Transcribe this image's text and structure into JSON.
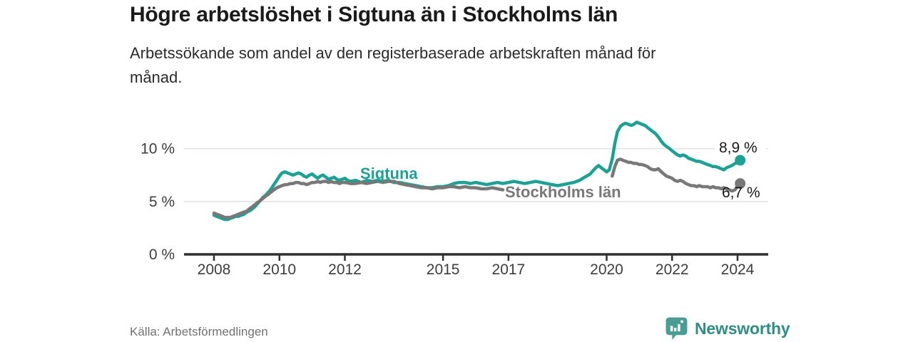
{
  "header": {
    "title": "Högre arbetslöshet i Sigtuna än i Stockholms län",
    "subtitle_lines": [
      "Arbetssökande som andel av den registerbaserade arbetskraften månad för",
      "månad."
    ]
  },
  "footer": {
    "source": "Källa: Arbetsförmedlingen",
    "brand": "Newsworthy"
  },
  "colors": {
    "sigtuna": "#1ca294",
    "stockholm": "#787878",
    "axis": "#2f2f2f",
    "grid": "#e3e3e3",
    "tick_label": "#3d3d3d",
    "end_label": "#1a1a1a",
    "brand_text": "#2f8c87",
    "brand_icon": "#4a9d95"
  },
  "chart_data": {
    "type": "line",
    "title": "Högre arbetslöshet i Sigtuna än i Stockholms län",
    "xlabel": "",
    "ylabel": "",
    "unit": "%",
    "xlim": [
      2007.1,
      2024.95
    ],
    "ylim": [
      0,
      13.5
    ],
    "grid": "horizontal",
    "legend": "inline-labels",
    "x_ticks": [
      2008,
      2010,
      2012,
      2015,
      2017,
      2020,
      2022,
      2024
    ],
    "y_ticks": [
      {
        "value": 0,
        "label": "0 %"
      },
      {
        "value": 5,
        "label": "5 %"
      },
      {
        "value": 10,
        "label": "10 %"
      }
    ],
    "series": [
      {
        "id": "sigtuna",
        "name": "Sigtuna",
        "color": "#1ca294",
        "end_label": "8,9 %",
        "last_value": 8.9,
        "points": [
          [
            2008.0,
            3.7
          ],
          [
            2008.08,
            3.6
          ],
          [
            2008.17,
            3.5
          ],
          [
            2008.25,
            3.4
          ],
          [
            2008.33,
            3.3
          ],
          [
            2008.42,
            3.3
          ],
          [
            2008.5,
            3.4
          ],
          [
            2008.58,
            3.5
          ],
          [
            2008.67,
            3.6
          ],
          [
            2008.75,
            3.6
          ],
          [
            2008.83,
            3.7
          ],
          [
            2008.92,
            3.8
          ],
          [
            2009.0,
            4.0
          ],
          [
            2009.08,
            4.1
          ],
          [
            2009.17,
            4.3
          ],
          [
            2009.25,
            4.5
          ],
          [
            2009.33,
            4.8
          ],
          [
            2009.42,
            5.1
          ],
          [
            2009.5,
            5.4
          ],
          [
            2009.58,
            5.6
          ],
          [
            2009.67,
            5.9
          ],
          [
            2009.75,
            6.2
          ],
          [
            2009.83,
            6.6
          ],
          [
            2009.92,
            7.0
          ],
          [
            2010.0,
            7.4
          ],
          [
            2010.08,
            7.7
          ],
          [
            2010.17,
            7.8
          ],
          [
            2010.25,
            7.7
          ],
          [
            2010.33,
            7.6
          ],
          [
            2010.42,
            7.5
          ],
          [
            2010.5,
            7.6
          ],
          [
            2010.58,
            7.7
          ],
          [
            2010.67,
            7.6
          ],
          [
            2010.75,
            7.4
          ],
          [
            2010.83,
            7.3
          ],
          [
            2010.92,
            7.5
          ],
          [
            2011.0,
            7.6
          ],
          [
            2011.08,
            7.4
          ],
          [
            2011.17,
            7.2
          ],
          [
            2011.25,
            7.4
          ],
          [
            2011.33,
            7.5
          ],
          [
            2011.42,
            7.3
          ],
          [
            2011.5,
            7.1
          ],
          [
            2011.58,
            7.2
          ],
          [
            2011.67,
            7.3
          ],
          [
            2011.75,
            7.1
          ],
          [
            2011.83,
            7.0
          ],
          [
            2011.92,
            7.1
          ],
          [
            2012.0,
            7.2
          ],
          [
            2012.08,
            7.0
          ],
          [
            2012.17,
            6.9
          ],
          [
            2012.33,
            7.0
          ],
          [
            2012.5,
            6.8
          ],
          [
            2012.67,
            7.0
          ],
          [
            2012.83,
            6.9
          ],
          [
            2013.0,
            7.0
          ],
          [
            2013.17,
            6.9
          ],
          [
            2013.33,
            7.0
          ],
          [
            2013.5,
            6.8
          ],
          [
            2013.67,
            6.8
          ],
          [
            2013.83,
            6.7
          ],
          [
            2014.0,
            6.6
          ],
          [
            2014.17,
            6.5
          ],
          [
            2014.33,
            6.4
          ],
          [
            2014.5,
            6.3
          ],
          [
            2014.67,
            6.3
          ],
          [
            2014.83,
            6.4
          ],
          [
            2015.0,
            6.4
          ],
          [
            2015.17,
            6.5
          ],
          [
            2015.33,
            6.7
          ],
          [
            2015.5,
            6.8
          ],
          [
            2015.67,
            6.8
          ],
          [
            2015.83,
            6.7
          ],
          [
            2016.0,
            6.8
          ],
          [
            2016.17,
            6.7
          ],
          [
            2016.33,
            6.6
          ],
          [
            2016.5,
            6.7
          ],
          [
            2016.67,
            6.8
          ],
          [
            2016.83,
            6.7
          ],
          [
            2017.0,
            6.8
          ],
          [
            2017.17,
            6.9
          ],
          [
            2017.33,
            6.8
          ],
          [
            2017.5,
            6.7
          ],
          [
            2017.67,
            6.8
          ],
          [
            2017.83,
            6.9
          ],
          [
            2018.0,
            6.8
          ],
          [
            2018.17,
            6.7
          ],
          [
            2018.33,
            6.6
          ],
          [
            2018.5,
            6.5
          ],
          [
            2018.67,
            6.6
          ],
          [
            2018.83,
            6.7
          ],
          [
            2019.0,
            6.8
          ],
          [
            2019.17,
            7.0
          ],
          [
            2019.33,
            7.3
          ],
          [
            2019.5,
            7.6
          ],
          [
            2019.58,
            7.9
          ],
          [
            2019.67,
            8.2
          ],
          [
            2019.75,
            8.4
          ],
          [
            2019.83,
            8.2
          ],
          [
            2019.92,
            8.0
          ],
          [
            2020.0,
            7.8
          ],
          [
            2020.08,
            8.0
          ],
          [
            2020.17,
            9.0
          ],
          [
            2020.25,
            10.5
          ],
          [
            2020.33,
            11.6
          ],
          [
            2020.42,
            12.1
          ],
          [
            2020.5,
            12.3
          ],
          [
            2020.58,
            12.4
          ],
          [
            2020.67,
            12.3
          ],
          [
            2020.75,
            12.2
          ],
          [
            2020.83,
            12.3
          ],
          [
            2020.92,
            12.5
          ],
          [
            2021.0,
            12.4
          ],
          [
            2021.08,
            12.3
          ],
          [
            2021.17,
            12.2
          ],
          [
            2021.25,
            12.0
          ],
          [
            2021.33,
            11.8
          ],
          [
            2021.42,
            11.6
          ],
          [
            2021.5,
            11.4
          ],
          [
            2021.58,
            11.1
          ],
          [
            2021.67,
            10.7
          ],
          [
            2021.75,
            10.4
          ],
          [
            2021.83,
            10.2
          ],
          [
            2021.92,
            10.0
          ],
          [
            2022.0,
            9.8
          ],
          [
            2022.08,
            9.6
          ],
          [
            2022.17,
            9.4
          ],
          [
            2022.25,
            9.3
          ],
          [
            2022.33,
            9.4
          ],
          [
            2022.42,
            9.3
          ],
          [
            2022.5,
            9.1
          ],
          [
            2022.58,
            9.0
          ],
          [
            2022.67,
            8.9
          ],
          [
            2022.75,
            8.8
          ],
          [
            2022.83,
            8.8
          ],
          [
            2022.92,
            8.7
          ],
          [
            2023.0,
            8.6
          ],
          [
            2023.08,
            8.5
          ],
          [
            2023.17,
            8.4
          ],
          [
            2023.25,
            8.3
          ],
          [
            2023.33,
            8.3
          ],
          [
            2023.42,
            8.2
          ],
          [
            2023.5,
            8.1
          ],
          [
            2023.58,
            8.0
          ],
          [
            2023.67,
            8.2
          ],
          [
            2023.75,
            8.3
          ],
          [
            2023.83,
            8.4
          ],
          [
            2023.92,
            8.6
          ],
          [
            2024.0,
            8.7
          ],
          [
            2024.08,
            8.9
          ]
        ]
      },
      {
        "id": "stockholms-lan",
        "name": "Stockholms län",
        "color": "#787878",
        "end_label": "6,7 %",
        "last_value": 6.7,
        "label_gaps": [
          [
            2016.9,
            2020.12
          ]
        ],
        "points": [
          [
            2008.0,
            3.9
          ],
          [
            2008.08,
            3.8
          ],
          [
            2008.17,
            3.7
          ],
          [
            2008.25,
            3.6
          ],
          [
            2008.33,
            3.5
          ],
          [
            2008.42,
            3.5
          ],
          [
            2008.5,
            3.5
          ],
          [
            2008.58,
            3.6
          ],
          [
            2008.67,
            3.7
          ],
          [
            2008.75,
            3.8
          ],
          [
            2008.83,
            3.9
          ],
          [
            2008.92,
            4.0
          ],
          [
            2009.0,
            4.1
          ],
          [
            2009.08,
            4.3
          ],
          [
            2009.17,
            4.5
          ],
          [
            2009.25,
            4.7
          ],
          [
            2009.33,
            4.9
          ],
          [
            2009.42,
            5.1
          ],
          [
            2009.5,
            5.3
          ],
          [
            2009.58,
            5.5
          ],
          [
            2009.67,
            5.7
          ],
          [
            2009.75,
            5.9
          ],
          [
            2009.83,
            6.1
          ],
          [
            2009.92,
            6.3
          ],
          [
            2010.0,
            6.4
          ],
          [
            2010.08,
            6.5
          ],
          [
            2010.17,
            6.6
          ],
          [
            2010.25,
            6.6
          ],
          [
            2010.33,
            6.7
          ],
          [
            2010.42,
            6.7
          ],
          [
            2010.5,
            6.8
          ],
          [
            2010.58,
            6.8
          ],
          [
            2010.67,
            6.7
          ],
          [
            2010.75,
            6.7
          ],
          [
            2010.83,
            6.6
          ],
          [
            2010.92,
            6.7
          ],
          [
            2011.0,
            6.8
          ],
          [
            2011.08,
            6.8
          ],
          [
            2011.17,
            6.9
          ],
          [
            2011.25,
            6.8
          ],
          [
            2011.33,
            6.9
          ],
          [
            2011.42,
            6.9
          ],
          [
            2011.5,
            6.8
          ],
          [
            2011.58,
            6.9
          ],
          [
            2011.67,
            6.8
          ],
          [
            2011.75,
            6.8
          ],
          [
            2011.83,
            6.7
          ],
          [
            2011.92,
            6.8
          ],
          [
            2012.0,
            6.8
          ],
          [
            2012.17,
            6.7
          ],
          [
            2012.33,
            6.7
          ],
          [
            2012.5,
            6.8
          ],
          [
            2012.67,
            6.7
          ],
          [
            2012.83,
            6.8
          ],
          [
            2013.0,
            6.9
          ],
          [
            2013.17,
            6.8
          ],
          [
            2013.33,
            6.9
          ],
          [
            2013.5,
            6.9
          ],
          [
            2013.67,
            6.7
          ],
          [
            2013.83,
            6.6
          ],
          [
            2014.0,
            6.5
          ],
          [
            2014.17,
            6.4
          ],
          [
            2014.33,
            6.3
          ],
          [
            2014.5,
            6.3
          ],
          [
            2014.67,
            6.2
          ],
          [
            2014.83,
            6.3
          ],
          [
            2015.0,
            6.3
          ],
          [
            2015.17,
            6.4
          ],
          [
            2015.33,
            6.4
          ],
          [
            2015.5,
            6.3
          ],
          [
            2015.67,
            6.4
          ],
          [
            2015.83,
            6.3
          ],
          [
            2016.0,
            6.3
          ],
          [
            2016.17,
            6.2
          ],
          [
            2016.33,
            6.2
          ],
          [
            2016.5,
            6.3
          ],
          [
            2016.67,
            6.2
          ],
          [
            2016.83,
            6.1
          ],
          [
            2017.0,
            6.1
          ],
          [
            2017.25,
            6.1
          ],
          [
            2017.5,
            6.0
          ],
          [
            2017.75,
            6.1
          ],
          [
            2018.0,
            6.1
          ],
          [
            2018.25,
            6.0
          ],
          [
            2018.5,
            6.1
          ],
          [
            2018.75,
            6.1
          ],
          [
            2019.0,
            6.2
          ],
          [
            2019.25,
            6.2
          ],
          [
            2019.5,
            6.3
          ],
          [
            2019.75,
            6.3
          ],
          [
            2020.0,
            6.4
          ],
          [
            2020.08,
            6.6
          ],
          [
            2020.17,
            7.4
          ],
          [
            2020.25,
            8.3
          ],
          [
            2020.33,
            8.9
          ],
          [
            2020.42,
            9.0
          ],
          [
            2020.5,
            8.9
          ],
          [
            2020.58,
            8.8
          ],
          [
            2020.67,
            8.7
          ],
          [
            2020.75,
            8.7
          ],
          [
            2020.83,
            8.6
          ],
          [
            2020.92,
            8.6
          ],
          [
            2021.0,
            8.5
          ],
          [
            2021.08,
            8.5
          ],
          [
            2021.17,
            8.4
          ],
          [
            2021.25,
            8.3
          ],
          [
            2021.33,
            8.1
          ],
          [
            2021.42,
            8.0
          ],
          [
            2021.5,
            8.0
          ],
          [
            2021.58,
            8.1
          ],
          [
            2021.67,
            7.8
          ],
          [
            2021.75,
            7.6
          ],
          [
            2021.83,
            7.4
          ],
          [
            2021.92,
            7.3
          ],
          [
            2022.0,
            7.2
          ],
          [
            2022.08,
            7.0
          ],
          [
            2022.17,
            6.9
          ],
          [
            2022.25,
            7.0
          ],
          [
            2022.33,
            6.9
          ],
          [
            2022.42,
            6.7
          ],
          [
            2022.5,
            6.6
          ],
          [
            2022.58,
            6.5
          ],
          [
            2022.67,
            6.5
          ],
          [
            2022.75,
            6.4
          ],
          [
            2022.83,
            6.5
          ],
          [
            2022.92,
            6.4
          ],
          [
            2023.0,
            6.4
          ],
          [
            2023.08,
            6.4
          ],
          [
            2023.17,
            6.3
          ],
          [
            2023.25,
            6.4
          ],
          [
            2023.33,
            6.3
          ],
          [
            2023.42,
            6.3
          ],
          [
            2023.5,
            6.2
          ],
          [
            2023.58,
            6.3
          ],
          [
            2023.67,
            6.2
          ],
          [
            2023.75,
            6.1
          ],
          [
            2023.83,
            6.0
          ],
          [
            2023.92,
            6.1
          ],
          [
            2024.0,
            6.4
          ],
          [
            2024.08,
            6.7
          ]
        ]
      }
    ]
  }
}
